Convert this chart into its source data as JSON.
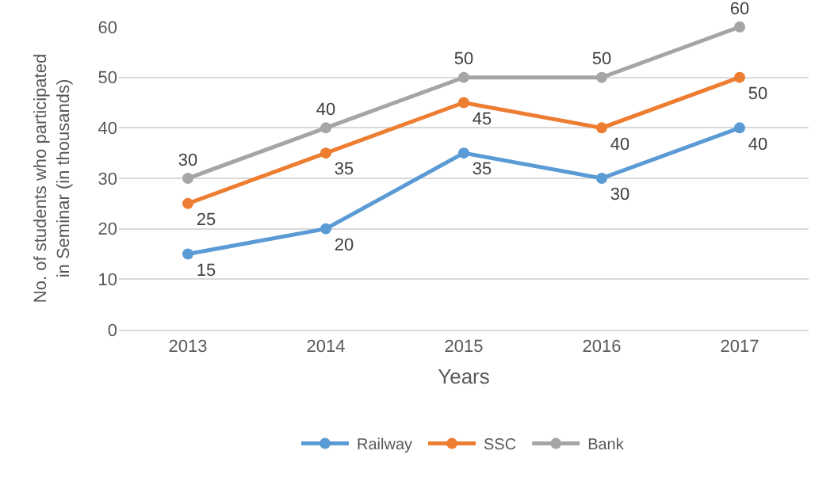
{
  "chart_data": {
    "type": "line",
    "categories": [
      "2013",
      "2014",
      "2015",
      "2016",
      "2017"
    ],
    "xlabel": "Years",
    "ylabel": "No. of students who participated\nin Seminar (in thousands)",
    "series": [
      {
        "name": "Railway",
        "color": "#5b9bd5",
        "values": [
          15,
          20,
          35,
          30,
          40
        ]
      },
      {
        "name": "SSC",
        "color": "#ed7d31",
        "values": [
          25,
          35,
          45,
          40,
          50
        ]
      },
      {
        "name": "Bank",
        "color": "#a5a5a5",
        "values": [
          30,
          40,
          50,
          50,
          60
        ]
      }
    ],
    "ylim": [
      0,
      60
    ],
    "yticks": [
      0,
      10,
      20,
      30,
      40,
      50,
      60
    ],
    "grid": "y",
    "legend": "bottom",
    "marker": "circle",
    "line_style": "solid",
    "data_labels": true
  }
}
